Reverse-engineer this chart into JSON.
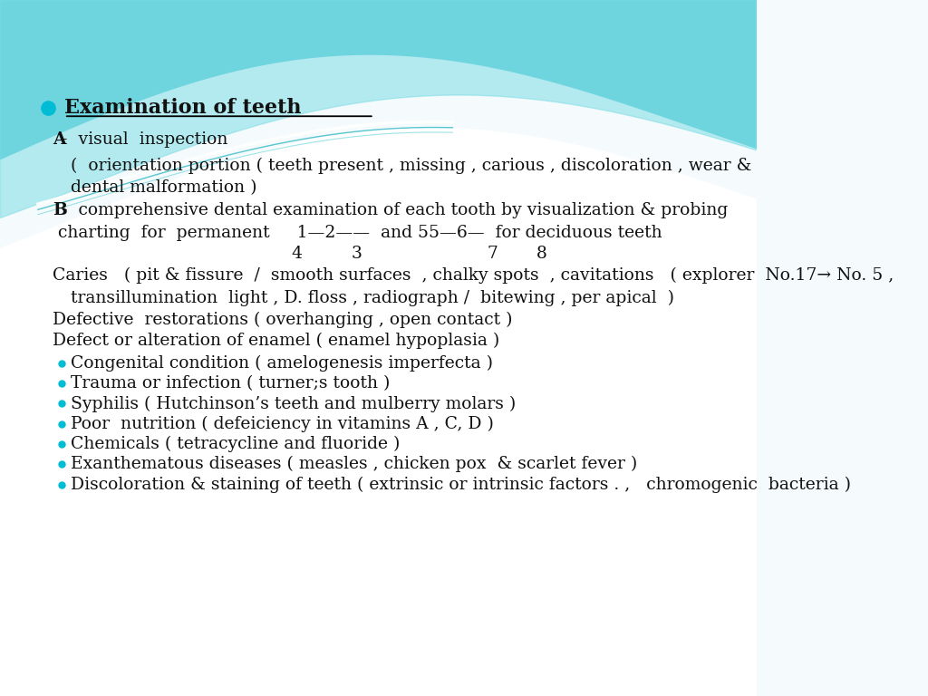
{
  "bg_color": "#f5fbfc",
  "wave_color_main": "#5ecdd8",
  "wave_color_light": "#7ddce6",
  "bullet_color": "#00bcd4",
  "title": "Examination of teeth",
  "title_color": "#000000",
  "text_color": "#111111",
  "font_size": 13.5,
  "title_font_size": 16,
  "bullet_items": [
    "Congenital condition ( amelogenesis imperfecta )",
    "Trauma or infection ( turner;s tooth )",
    "Syphilis ( Hutchinson’s teeth and mulberry molars )",
    "Poor  nutrition ( defeiciency in vitamins A , C, D )",
    "Chemicals ( tetracycline and fluoride )",
    "Exanthematous diseases ( measles , chicken pox  & scarlet fever )",
    "Discoloration & staining of teeth ( extrinsic or intrinsic factors . ,   chromogenic  bacteria )"
  ]
}
